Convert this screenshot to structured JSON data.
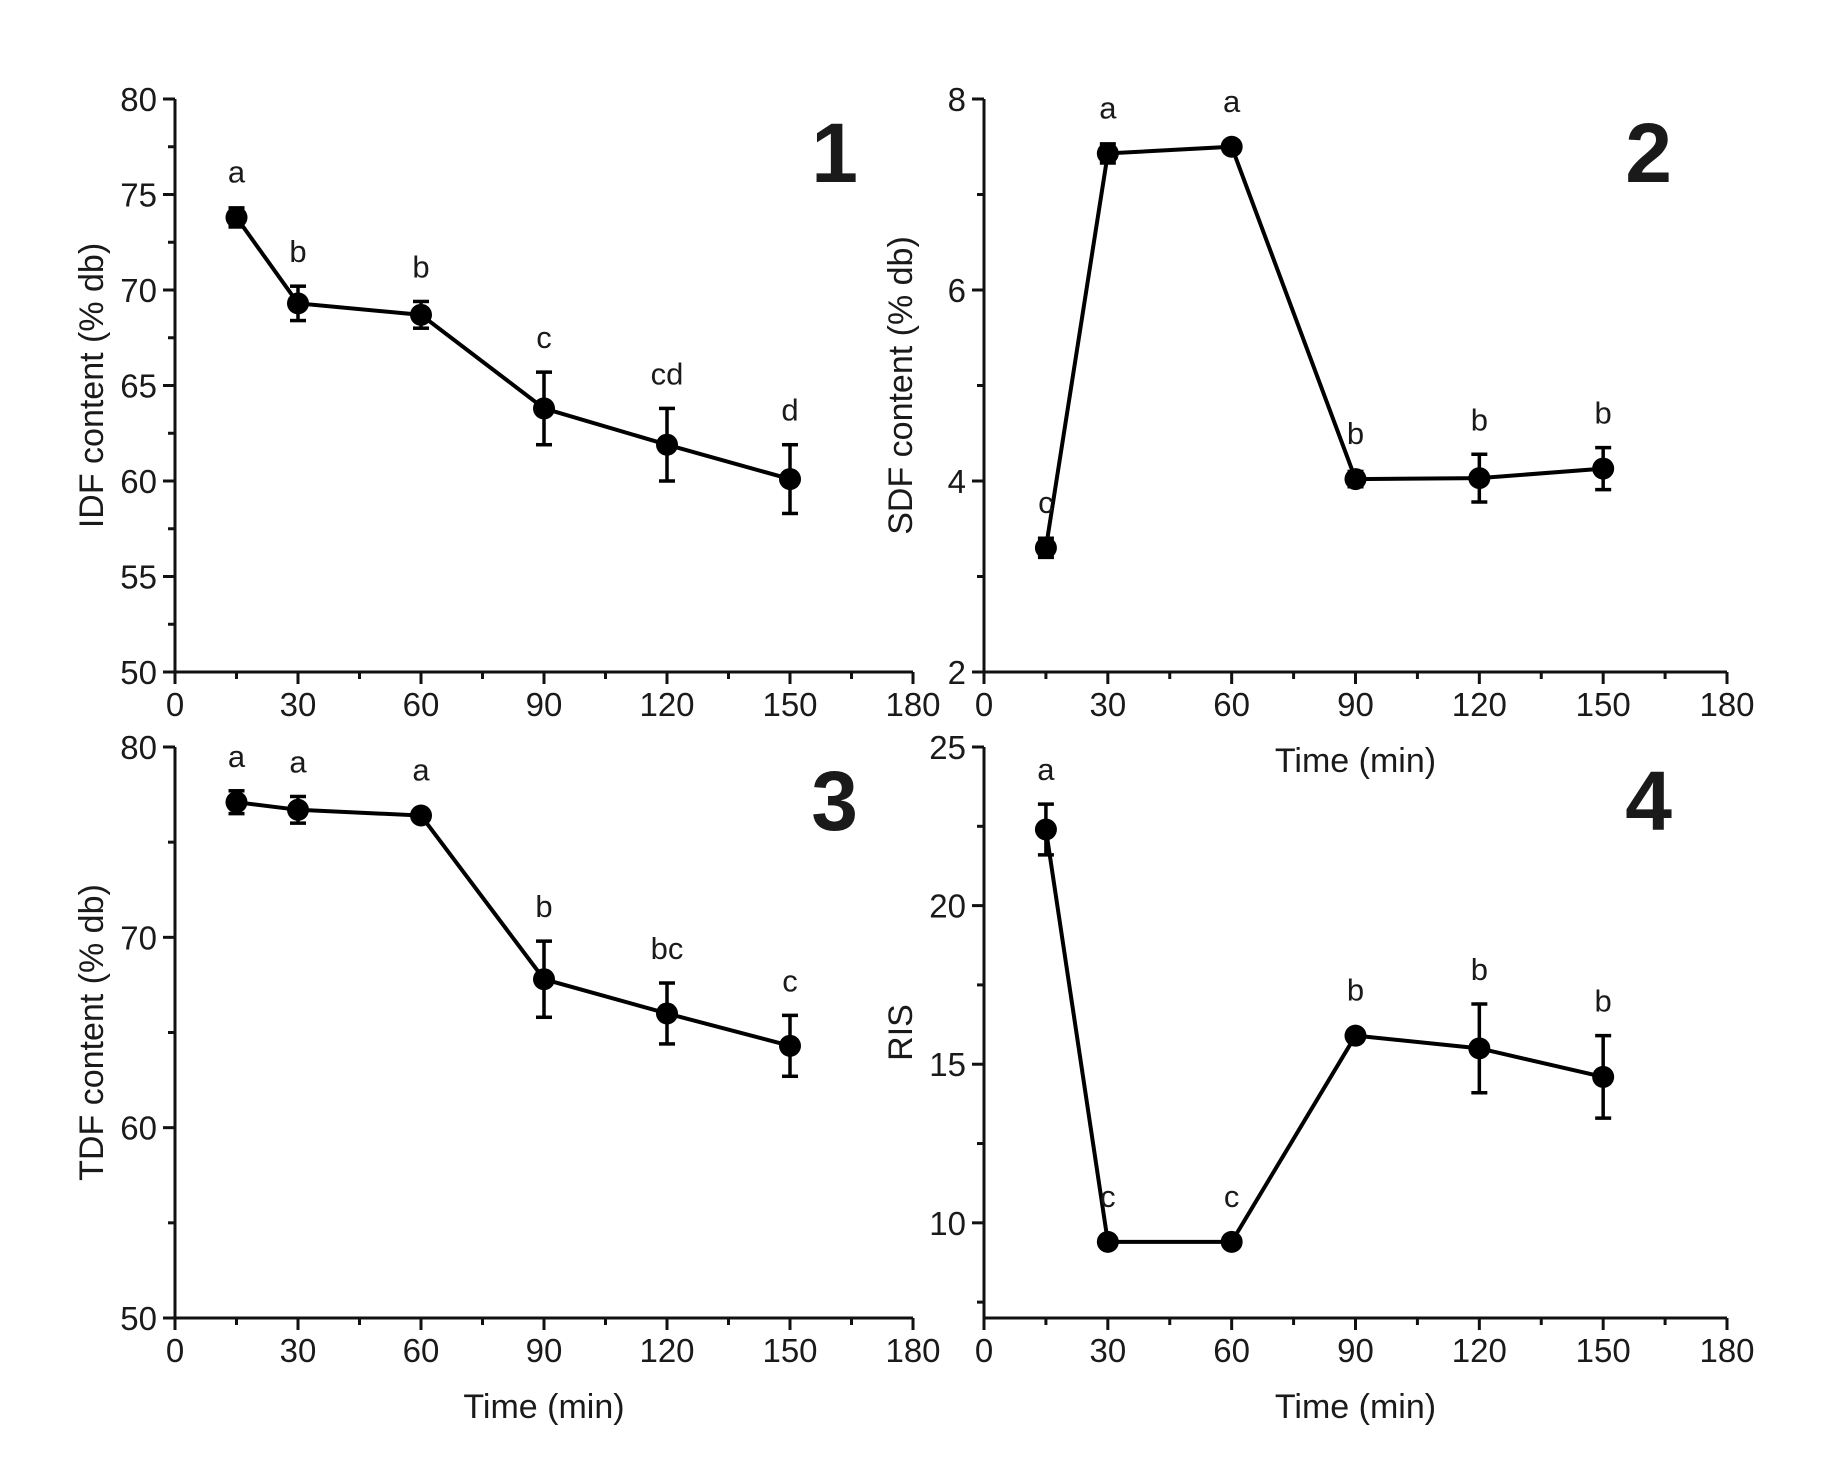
{
  "chart_data": [
    {
      "type": "line",
      "panel": "1",
      "xlabel": "",
      "ylabel": "IDF content (% db)",
      "xlim": [
        0,
        180
      ],
      "ylim": [
        50,
        80
      ],
      "xticks": [
        0,
        30,
        60,
        90,
        120,
        150,
        180
      ],
      "yticks": [
        50,
        55,
        60,
        65,
        70,
        75,
        80
      ],
      "x": [
        15,
        30,
        60,
        90,
        120,
        150
      ],
      "values": [
        73.8,
        69.3,
        68.7,
        63.8,
        61.9,
        60.1
      ],
      "errors": [
        0.5,
        0.9,
        0.7,
        1.9,
        1.9,
        1.8
      ],
      "letters": [
        "a",
        "b",
        "b",
        "c",
        "cd",
        "d"
      ]
    },
    {
      "type": "line",
      "panel": "2",
      "xlabel": "Time (min)",
      "ylabel": "SDF content (% db)",
      "xlim": [
        0,
        180
      ],
      "ylim": [
        2,
        8
      ],
      "xticks": [
        0,
        30,
        60,
        90,
        120,
        150,
        180
      ],
      "yticks": [
        2,
        4,
        6,
        8
      ],
      "x": [
        15,
        30,
        60,
        90,
        120,
        150
      ],
      "values": [
        3.3,
        7.43,
        7.5,
        4.02,
        4.03,
        4.13
      ],
      "errors": [
        0.1,
        0.1,
        0.06,
        0.08,
        0.25,
        0.22
      ],
      "letters": [
        "c",
        "a",
        "a",
        "b",
        "b",
        "b"
      ]
    },
    {
      "type": "line",
      "panel": "3",
      "xlabel": "Time (min)",
      "ylabel": "TDF content (% db)",
      "xlim": [
        0,
        180
      ],
      "ylim": [
        50,
        80
      ],
      "xticks": [
        0,
        30,
        60,
        90,
        120,
        150,
        180
      ],
      "yticks": [
        50,
        60,
        70,
        80
      ],
      "x": [
        15,
        30,
        60,
        90,
        120,
        150
      ],
      "values": [
        77.1,
        76.7,
        76.4,
        67.8,
        66.0,
        64.3
      ],
      "errors": [
        0.6,
        0.7,
        0.3,
        2.0,
        1.6,
        1.6
      ],
      "letters": [
        "a",
        "a",
        "a",
        "b",
        "bc",
        "c"
      ]
    },
    {
      "type": "line",
      "panel": "4",
      "xlabel": "Time (min)",
      "ylabel": "RIS",
      "xlim": [
        0,
        180
      ],
      "ylim": [
        7,
        25
      ],
      "xticks": [
        0,
        30,
        60,
        90,
        120,
        150,
        180
      ],
      "yticks": [
        10,
        15,
        20,
        25
      ],
      "x": [
        15,
        30,
        60,
        90,
        120,
        150
      ],
      "values": [
        22.4,
        9.4,
        9.4,
        15.9,
        15.5,
        14.6
      ],
      "errors": [
        0.8,
        0.1,
        0.1,
        0.15,
        1.4,
        1.3
      ],
      "letters": [
        "a",
        "c",
        "c",
        "b",
        "b",
        "b"
      ]
    }
  ]
}
